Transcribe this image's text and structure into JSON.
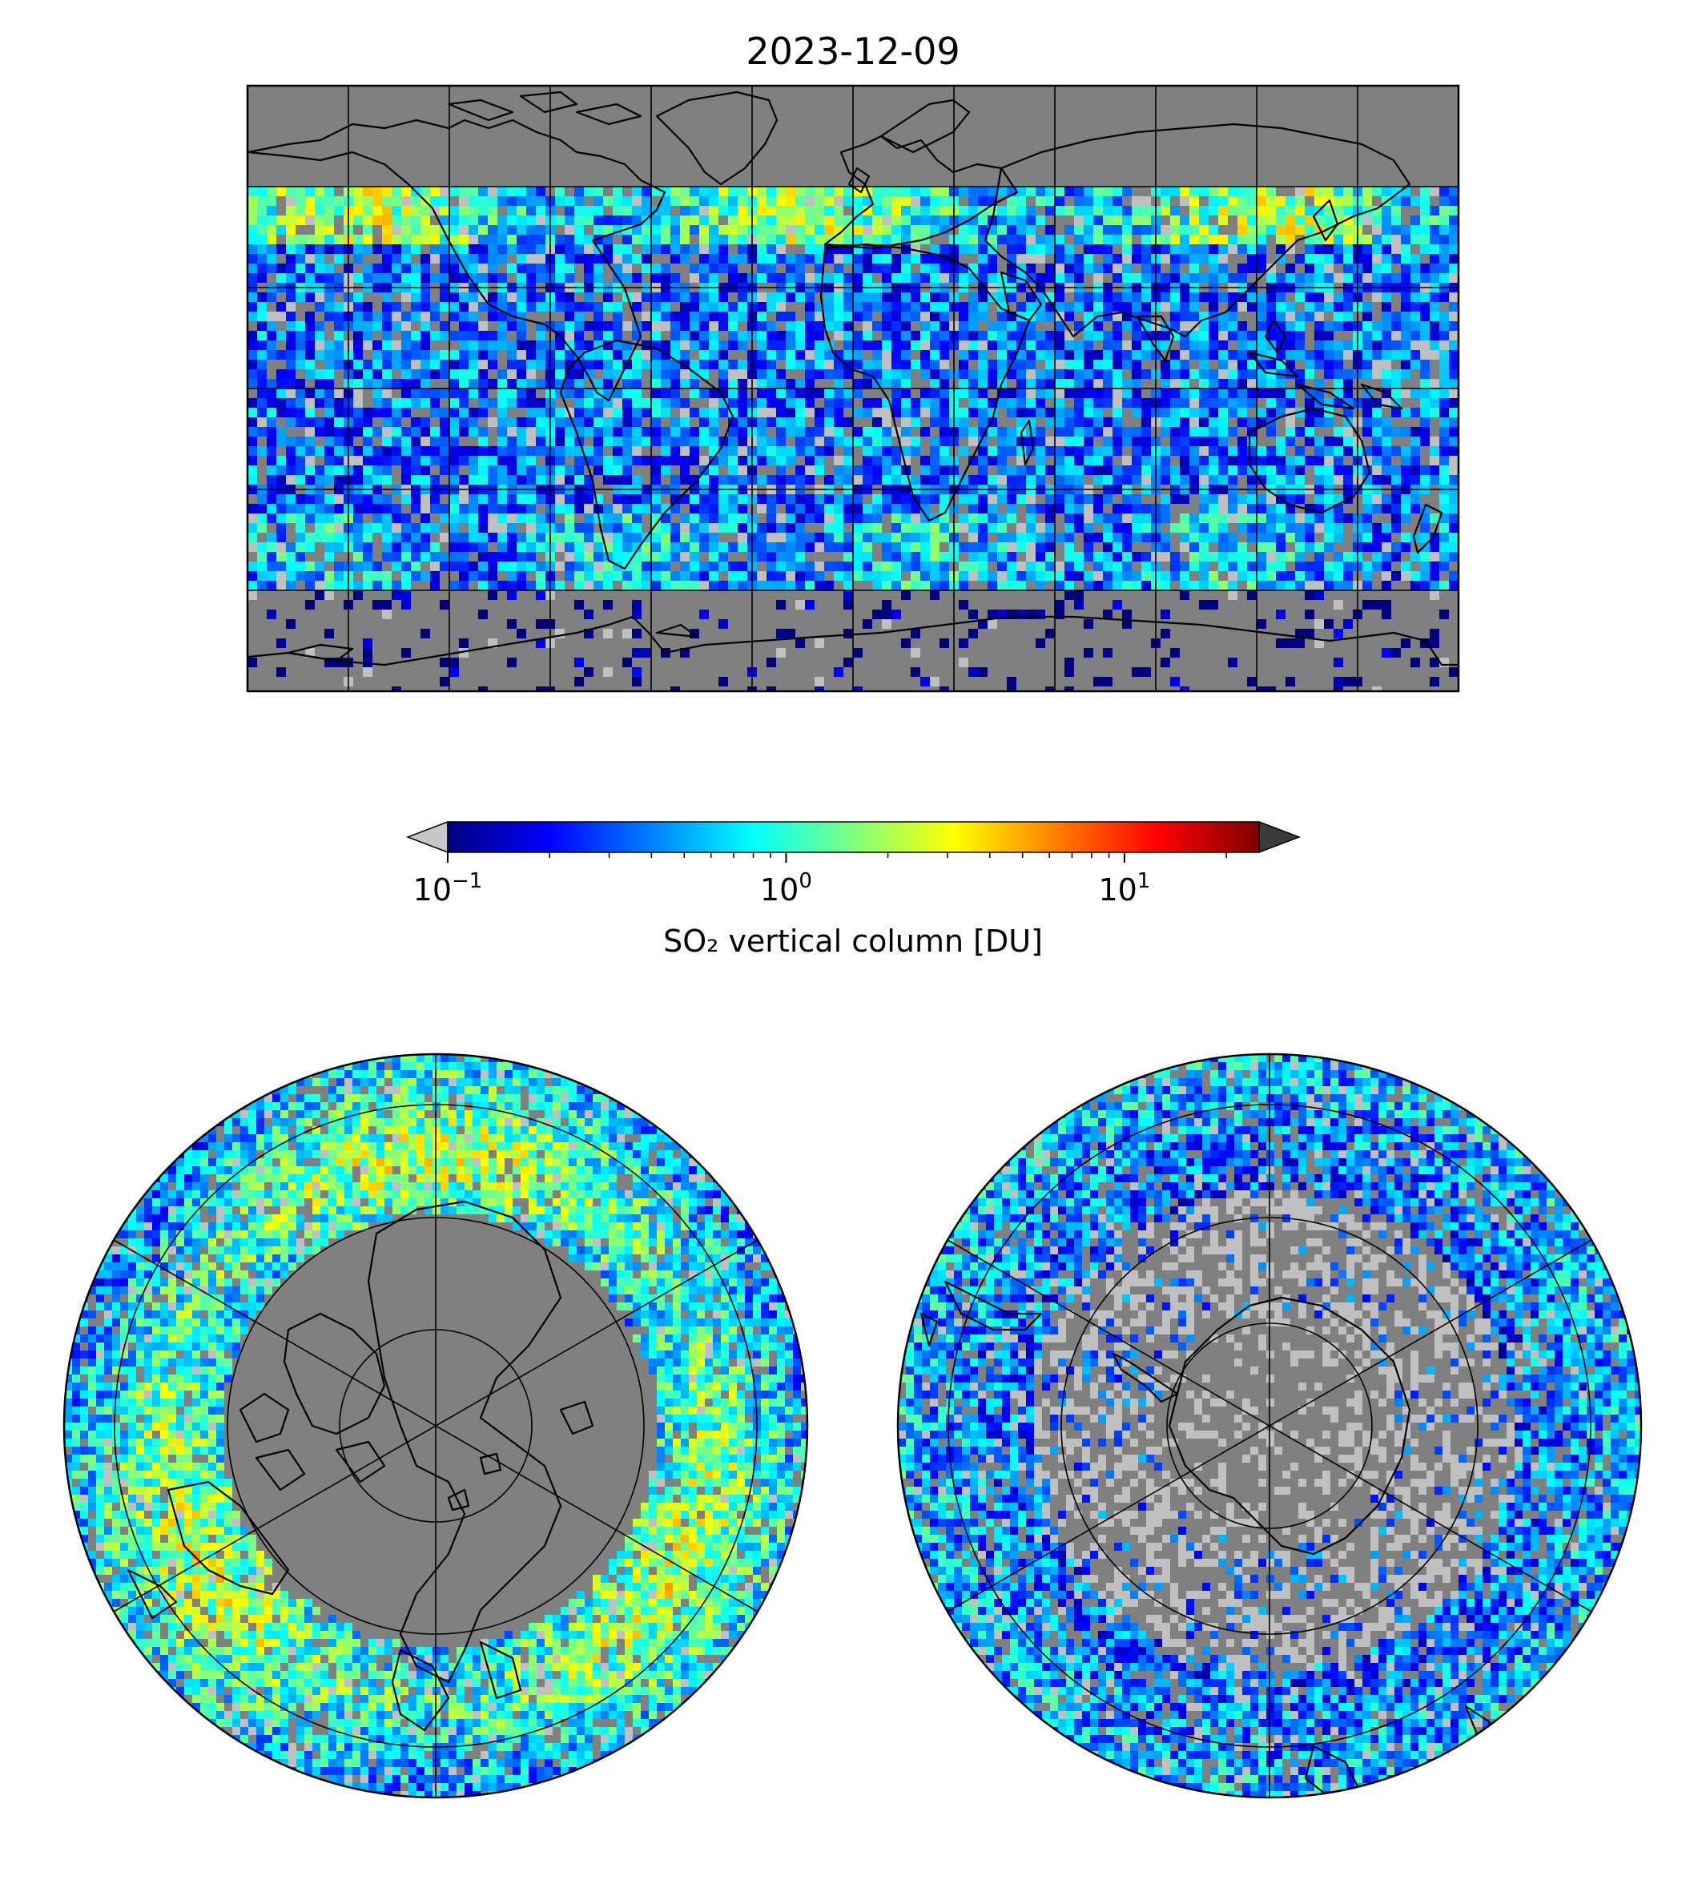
{
  "figure": {
    "title": "2023-12-09",
    "panels": [
      {
        "name": "global-map",
        "projection": "plate-carree",
        "gridlines_lon_step_deg": 30,
        "gridlines_lat_step_deg": 30
      },
      {
        "name": "north-polar-map",
        "projection": "north-polar-stereographic",
        "gridline_circles": 4,
        "meridian_lines": 6
      },
      {
        "name": "south-polar-map",
        "projection": "south-polar-stereographic",
        "gridline_circles": 4,
        "meridian_lines": 6
      }
    ]
  },
  "colorbar": {
    "label": "SO₂ vertical column [DU]",
    "scale": "log",
    "range": [
      0.1,
      25
    ],
    "ticks": [
      {
        "value": 0.1,
        "base": "10",
        "exp": "−1"
      },
      {
        "value": 1,
        "base": "10",
        "exp": "0"
      },
      {
        "value": 10,
        "base": "10",
        "exp": "1"
      }
    ],
    "extend_min_color": "#c8c8c8",
    "extend_max_color": "#3a3a3a",
    "colormap": [
      "#00007f",
      "#0000ff",
      "#007fff",
      "#00ffff",
      "#7fff7f",
      "#ffff00",
      "#ff7f00",
      "#ff0000",
      "#7f0000"
    ]
  },
  "colors": {
    "no_data": "#808080",
    "below_range": "#c0c0c0",
    "coastline": "#000000"
  }
}
